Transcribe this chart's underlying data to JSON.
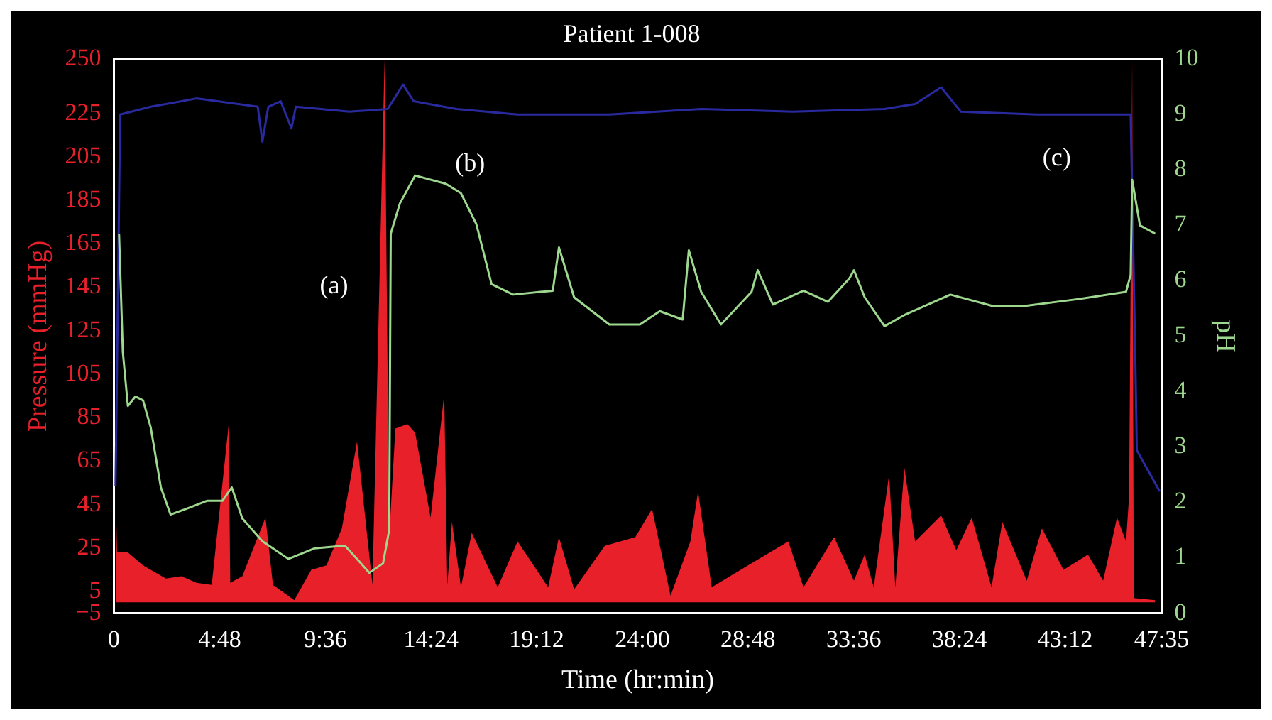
{
  "chart_data": {
    "type": "line",
    "title": "Patient 1-008",
    "xlabel": "Time (hr:min)",
    "ylabel": "Pressure (mmHg)",
    "y2label": "pH",
    "xlim": [
      0,
      47.583
    ],
    "xticks": [
      0,
      {
        "value": 4.8,
        "label": "4:48"
      },
      {
        "value": 9.6,
        "label": "9:36"
      },
      {
        "value": 14.4,
        "label": "14:24"
      },
      {
        "value": 19.2,
        "label": "19:12"
      },
      {
        "value": 24,
        "label": "24:00"
      },
      {
        "value": 28.8,
        "label": "28:48"
      },
      {
        "value": 33.6,
        "label": "33:36"
      },
      {
        "value": 38.4,
        "label": "38:24"
      },
      {
        "value": 43.2,
        "label": "43:12"
      },
      {
        "value": 47.583,
        "label": "47:35"
      }
    ],
    "ylim": [
      -5,
      250
    ],
    "yticks": [
      {
        "value": -5,
        "label": "−5"
      },
      5,
      25,
      45,
      65,
      85,
      105,
      125,
      145,
      165,
      185,
      205,
      225,
      250
    ],
    "y2lim": [
      0,
      10
    ],
    "y2ticks": [
      0,
      1,
      2,
      3,
      4,
      5,
      6,
      7,
      8,
      9,
      10
    ],
    "grid": false,
    "legend": false,
    "marker": "none",
    "annotations": [
      "(a)",
      "(b)",
      "(c)"
    ],
    "series": [
      {
        "type": "area",
        "color": "#e8202a",
        "x": [
          0.07,
          0.14,
          0.63,
          1.32,
          2.36,
          3.06,
          3.75,
          4.44,
          5.21,
          5.28,
          5.83,
          6.88,
          7.22,
          8.19,
          8.96,
          9.65,
          10.35,
          11.04,
          11.74,
          12.29,
          12.5,
          12.78,
          13.33,
          13.68,
          14.38,
          15.0,
          15.14,
          15.35,
          15.76,
          16.25,
          17.43,
          18.33,
          19.72,
          20.21,
          20.9,
          22.29,
          23.68,
          24.44,
          25.28,
          26.18,
          26.53,
          27.15,
          28.96,
          30.63,
          31.32,
          32.71,
          33.61,
          34.1,
          34.51,
          35.21,
          35.49,
          35.9,
          36.39,
          37.57,
          38.26,
          38.96,
          39.86,
          40.35,
          41.46,
          42.15,
          43.13,
          44.24,
          44.93,
          45.56,
          45.97,
          46.11,
          46.25,
          46.32,
          47.29
        ],
        "values": [
          54,
          23,
          23,
          17,
          11,
          12,
          9,
          8,
          82,
          9,
          12,
          39,
          8,
          1,
          15,
          17,
          34,
          74,
          8,
          250,
          30,
          80,
          82,
          78,
          39,
          96,
          8,
          37,
          7,
          32,
          7,
          28,
          7,
          30,
          6,
          26,
          30,
          43,
          3,
          28,
          51,
          7,
          18,
          28,
          7,
          30,
          10,
          22,
          7,
          59,
          7,
          62,
          28,
          40,
          24,
          39,
          7,
          37,
          10,
          34,
          15,
          22,
          10,
          39,
          28,
          49,
          250,
          2,
          1
        ]
      },
      {
        "type": "line",
        "axis": "y2",
        "color": "#9ed88f",
        "x": [
          0.23,
          0.4,
          0.63,
          0.97,
          1.32,
          1.67,
          2.13,
          2.57,
          3.26,
          4.24,
          4.93,
          5.35,
          5.83,
          6.74,
          7.92,
          9.1,
          10.49,
          11.6,
          12.22,
          12.5,
          12.57,
          12.99,
          13.68,
          15.07,
          15.76,
          16.46,
          17.15,
          18.13,
          19.93,
          20.21,
          20.9,
          22.5,
          23.89,
          24.79,
          25.83,
          26.11,
          26.67,
          27.57,
          28.96,
          29.24,
          29.93,
          31.32,
          32.43,
          33.4,
          33.61,
          34.1,
          35.0,
          35.9,
          37.99,
          39.86,
          41.46,
          43.82,
          45.97,
          46.18,
          46.25,
          46.6,
          47.29
        ],
        "values": [
          6.85,
          4.72,
          3.74,
          3.91,
          3.84,
          3.35,
          2.27,
          1.78,
          1.88,
          2.03,
          2.03,
          2.27,
          1.71,
          1.3,
          0.98,
          1.17,
          1.22,
          0.73,
          0.9,
          1.5,
          6.85,
          7.4,
          7.9,
          7.75,
          7.58,
          7.02,
          5.94,
          5.75,
          5.82,
          6.6,
          5.7,
          5.21,
          5.21,
          5.45,
          5.3,
          6.55,
          5.8,
          5.21,
          5.8,
          6.19,
          5.57,
          5.82,
          5.62,
          6.04,
          6.19,
          5.7,
          5.18,
          5.38,
          5.75,
          5.55,
          5.55,
          5.67,
          5.8,
          6.11,
          7.82,
          7.0,
          6.85
        ]
      },
      {
        "type": "line",
        "axis": "y2",
        "color": "#2a2aa0",
        "x": [
          0.07,
          0.28,
          1.67,
          3.75,
          6.53,
          6.74,
          7.01,
          7.57,
          8.06,
          8.26,
          10.69,
          12.43,
          13.13,
          13.61,
          15.56,
          18.33,
          22.5,
          26.67,
          30.83,
          35.0,
          36.39,
          37.57,
          38.47,
          41.94,
          46.18,
          46.39,
          46.46,
          47.5
        ],
        "values": [
          2.3,
          9.0,
          9.14,
          9.29,
          9.14,
          8.51,
          9.14,
          9.24,
          8.75,
          9.14,
          9.05,
          9.1,
          9.54,
          9.24,
          9.1,
          9.0,
          9.0,
          9.1,
          9.05,
          9.1,
          9.19,
          9.49,
          9.05,
          9.0,
          9.0,
          4.65,
          2.94,
          2.2
        ]
      }
    ]
  }
}
